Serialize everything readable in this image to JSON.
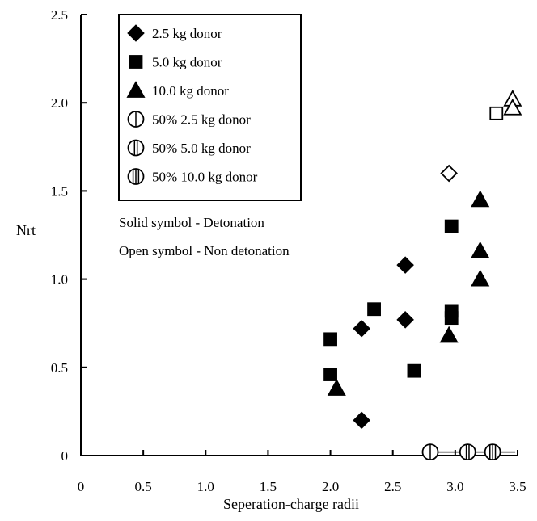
{
  "chart_data": {
    "type": "scatter",
    "title": "",
    "xlabel": "Seperation-charge radii",
    "ylabel": "Nrt",
    "xlim": [
      0,
      3.5
    ],
    "ylim": [
      0,
      2.5
    ],
    "x_ticks": [
      "0",
      "0.5",
      "1.0",
      "1.5",
      "2.0",
      "2.5",
      "3.0",
      "3.5"
    ],
    "y_ticks": [
      "0",
      "0.5",
      "1.0",
      "1.5",
      "2.0",
      "2.5"
    ],
    "grid": false,
    "legend_position": "top-left",
    "series": [
      {
        "name": "2.5 kg donor",
        "marker": "diamond",
        "fill": "solid",
        "points": [
          [
            2.25,
            0.72
          ],
          [
            2.25,
            0.2
          ],
          [
            2.6,
            0.77
          ],
          [
            2.6,
            1.08
          ]
        ]
      },
      {
        "name": "5.0 kg donor",
        "marker": "square",
        "fill": "solid",
        "points": [
          [
            2.0,
            0.66
          ],
          [
            2.0,
            0.46
          ],
          [
            2.35,
            0.83
          ],
          [
            2.67,
            0.48
          ],
          [
            2.97,
            1.3
          ],
          [
            2.97,
            0.82
          ],
          [
            2.97,
            0.78
          ]
        ]
      },
      {
        "name": "10.0 kg donor",
        "marker": "triangle",
        "fill": "solid",
        "points": [
          [
            2.05,
            0.38
          ],
          [
            2.95,
            0.68
          ],
          [
            3.2,
            1.45
          ],
          [
            3.2,
            1.16
          ],
          [
            3.2,
            1.0
          ]
        ]
      },
      {
        "name": "50% 2.5 kg donor",
        "marker": "circle-1-line",
        "fill": "hatched",
        "points": [
          [
            2.8,
            0.02
          ]
        ]
      },
      {
        "name": "50% 5.0 kg donor",
        "marker": "circle-2-line",
        "fill": "hatched",
        "points": [
          [
            3.1,
            0.02
          ]
        ]
      },
      {
        "name": "50% 10.0 kg donor",
        "marker": "circle-3-line",
        "fill": "hatched",
        "points": [
          [
            3.3,
            0.02
          ]
        ]
      },
      {
        "marker": "diamond",
        "fill": "open",
        "points": [
          [
            2.95,
            1.6
          ]
        ]
      },
      {
        "marker": "square",
        "fill": "open",
        "points": [
          [
            3.33,
            1.94
          ]
        ]
      },
      {
        "marker": "triangle",
        "fill": "open",
        "points": [
          [
            3.46,
            2.02
          ],
          [
            3.46,
            1.97
          ]
        ]
      }
    ],
    "annotations": [
      "Solid symbol - Detonation",
      "Open symbol - Non detonation"
    ]
  }
}
